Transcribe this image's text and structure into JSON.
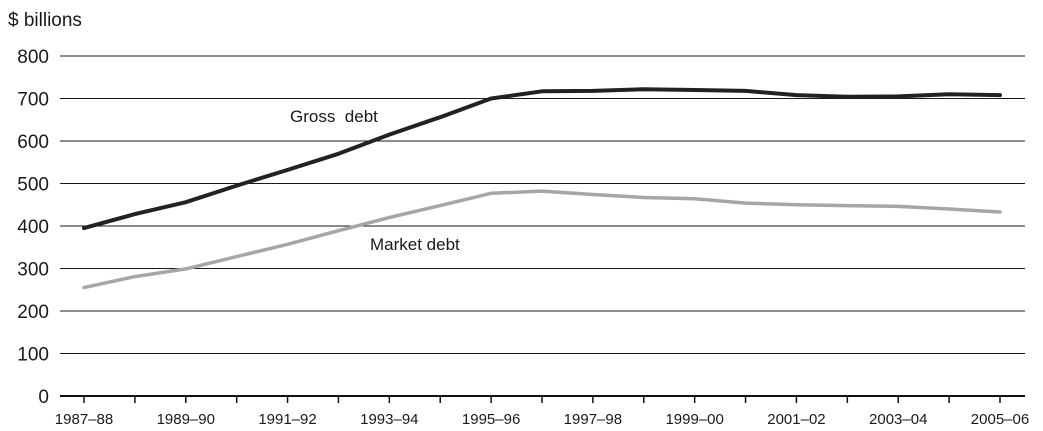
{
  "chart_data": {
    "type": "line",
    "title": "",
    "ylabel": "$ billions",
    "xlabel": "",
    "ylim": [
      0,
      800
    ],
    "yticks": [
      0,
      100,
      200,
      300,
      400,
      500,
      600,
      700,
      800
    ],
    "grid": "horizontal",
    "x": [
      "1987-88",
      "1988-89",
      "1989-90",
      "1990-91",
      "1991-92",
      "1992-93",
      "1993-94",
      "1994-95",
      "1995-96",
      "1996-97",
      "1997-98",
      "1998-99",
      "1999-00",
      "2000-01",
      "2001-02",
      "2002-03",
      "2003-04",
      "2004-05",
      "2005-06"
    ],
    "xtick_labels": [
      "1987–88",
      "1989–90",
      "1991–92",
      "1993–94",
      "1995–96",
      "1997–98",
      "1999–00",
      "2001–02",
      "2003–04",
      "2005–06"
    ],
    "series": [
      {
        "name": "Gross  debt",
        "color": "#222222",
        "values": [
          395,
          428,
          456,
          495,
          532,
          570,
          615,
          656,
          700,
          717,
          718,
          722,
          720,
          718,
          708,
          704,
          705,
          710,
          708
        ]
      },
      {
        "name": "Market debt",
        "color": "#a6a6a6",
        "values": [
          255,
          281,
          299,
          328,
          357,
          389,
          420,
          448,
          477,
          482,
          474,
          467,
          464,
          454,
          450,
          448,
          446,
          440,
          433
        ]
      }
    ]
  }
}
